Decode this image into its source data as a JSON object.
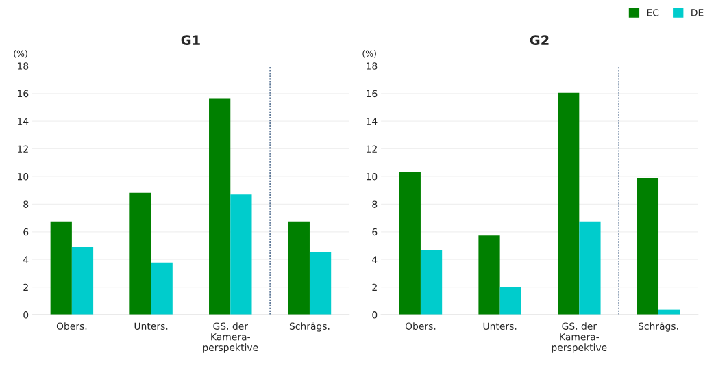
{
  "chart_data": [
    {
      "type": "bar",
      "title": "G1",
      "ylabel": "(%)",
      "categories": [
        "Obers.",
        "Unters.",
        "GS. der\nKamera-\nperspektive",
        "Schrägs."
      ],
      "series": [
        {
          "name": "EC",
          "color": "#008000",
          "values": [
            6.75,
            8.83,
            15.67,
            6.75
          ]
        },
        {
          "name": "DE",
          "color": "#00cccc",
          "values": [
            4.9,
            3.78,
            8.7,
            4.53
          ]
        }
      ],
      "ylim": [
        0,
        18
      ],
      "yticks": [
        0,
        2,
        4,
        6,
        8,
        10,
        12,
        14,
        16,
        18
      ],
      "grid": "y",
      "legend": "top right"
    },
    {
      "type": "bar",
      "title": "G2",
      "ylabel": "(%)",
      "categories": [
        "Obers.",
        "Unters.",
        "GS. der\nKamera-\nperspektive",
        "Schrägs."
      ],
      "series": [
        {
          "color": "#008000",
          "values": [
            10.3,
            5.73,
            16.05,
            9.9
          ]
        },
        {
          "color": "#00cccc",
          "values": [
            4.7,
            2.0,
            6.75,
            0.37
          ]
        }
      ],
      "ylim": [
        0,
        18
      ],
      "yticks": [
        0,
        2,
        4,
        6,
        8,
        10,
        12,
        14,
        16,
        18
      ],
      "grid": "y"
    }
  ]
}
